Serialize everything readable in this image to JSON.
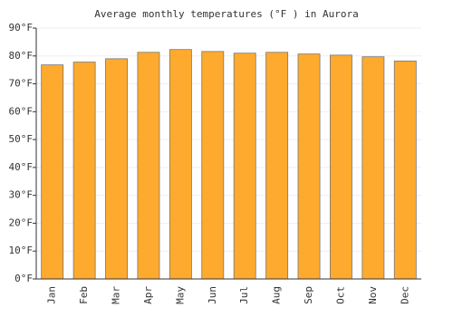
{
  "chart_data": {
    "type": "bar",
    "title": "Average monthly temperatures (°F ) in Aurora",
    "categories": [
      "Jan",
      "Feb",
      "Mar",
      "Apr",
      "May",
      "Jun",
      "Jul",
      "Aug",
      "Sep",
      "Oct",
      "Nov",
      "Dec"
    ],
    "values": [
      76.8,
      77.8,
      79.0,
      81.3,
      82.3,
      81.6,
      81.0,
      81.3,
      80.7,
      80.3,
      79.7,
      78.2
    ],
    "color": "#fdaa2e",
    "ylim": [
      0,
      90
    ],
    "yticks": [
      {
        "value": 0,
        "label": "0°F"
      },
      {
        "value": 10,
        "label": "10°F"
      },
      {
        "value": 20,
        "label": "20°F"
      },
      {
        "value": 30,
        "label": "30°F"
      },
      {
        "value": 40,
        "label": "40°F"
      },
      {
        "value": 50,
        "label": "50°F"
      },
      {
        "value": 60,
        "label": "60°F"
      },
      {
        "value": 70,
        "label": "70°F"
      },
      {
        "value": 80,
        "label": "80°F"
      },
      {
        "value": 90,
        "label": "90°F"
      }
    ],
    "grid": true
  }
}
